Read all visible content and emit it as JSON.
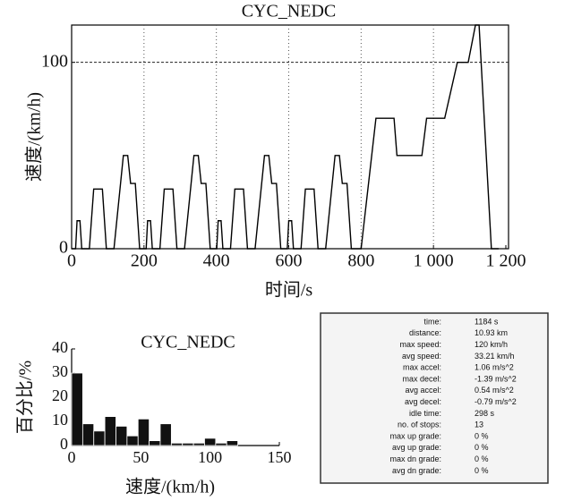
{
  "chart_data": [
    {
      "type": "line",
      "title": "CYC_NEDC",
      "x_label": "时间/s",
      "y_label": "速度/(km/h)",
      "x": [
        0,
        11,
        15,
        23,
        28,
        49,
        61,
        85,
        96,
        117,
        143,
        155,
        163,
        176,
        188,
        206,
        210,
        218,
        223,
        244,
        256,
        280,
        291,
        312,
        338,
        350,
        358,
        371,
        383,
        401,
        405,
        413,
        418,
        439,
        451,
        475,
        486,
        507,
        533,
        545,
        553,
        566,
        578,
        596,
        600,
        608,
        613,
        634,
        646,
        670,
        681,
        702,
        728,
        740,
        748,
        761,
        773,
        800,
        841,
        891,
        899,
        968,
        981,
        1031,
        1066,
        1096,
        1116,
        1126,
        1160,
        1180
      ],
      "series": [
        {
          "name": "speed",
          "color": "#000000",
          "values": [
            0,
            0,
            15,
            15,
            0,
            0,
            32,
            32,
            0,
            0,
            50,
            50,
            35,
            35,
            0,
            0,
            15,
            15,
            0,
            0,
            32,
            32,
            0,
            0,
            50,
            50,
            35,
            35,
            0,
            0,
            15,
            15,
            0,
            0,
            32,
            32,
            0,
            0,
            50,
            50,
            35,
            35,
            0,
            0,
            15,
            15,
            0,
            0,
            32,
            32,
            0,
            0,
            50,
            50,
            35,
            35,
            0,
            0,
            70,
            70,
            50,
            50,
            70,
            70,
            100,
            100,
            120,
            120,
            0,
            0
          ]
        }
      ],
      "xlim": [
        0,
        1200
      ],
      "ylim": [
        0,
        120
      ],
      "xticks": [
        0,
        200,
        400,
        600,
        800,
        {
          "value": 1000,
          "label": "1 000"
        },
        {
          "value": 1200,
          "label": "1 200"
        }
      ],
      "yticks": [
        0,
        100
      ],
      "grid": true
    },
    {
      "type": "histogram",
      "title": "CYC_NEDC",
      "x_label": "速度/(km/h)",
      "y_label": "百分比/%",
      "bins": [
        0,
        8,
        16,
        24,
        32,
        40,
        48,
        56,
        64,
        72,
        80,
        88,
        96,
        104,
        112,
        120
      ],
      "counts": [
        30,
        9,
        6,
        12,
        8,
        4,
        11,
        2,
        9,
        1,
        1,
        1,
        3,
        1,
        2
      ],
      "color": "#111111",
      "xlim": [
        0,
        150
      ],
      "ylim": [
        0,
        40
      ],
      "xticks": [
        0,
        50,
        100,
        150
      ],
      "yticks": [
        0,
        10,
        20,
        30,
        40
      ]
    }
  ],
  "stats": {
    "rows": [
      [
        "time:",
        "1184 s"
      ],
      [
        "distance:",
        "10.93 km"
      ],
      [
        "max speed:",
        "120 km/h"
      ],
      [
        "avg speed:",
        "33.21 km/h"
      ],
      [
        "max accel:",
        "1.06 m/s^2"
      ],
      [
        "max decel:",
        "-1.39 m/s^2"
      ],
      [
        "avg accel:",
        "0.54 m/s^2"
      ],
      [
        "avg decel:",
        "-0.79 m/s^2"
      ],
      [
        "idle time:",
        "298 s"
      ],
      [
        "no. of stops:",
        "13"
      ],
      [
        "max up grade:",
        "0 %"
      ],
      [
        "avg up grade:",
        "0 %"
      ],
      [
        "max dn grade:",
        "0 %"
      ],
      [
        "avg dn grade:",
        "0 %"
      ]
    ]
  }
}
